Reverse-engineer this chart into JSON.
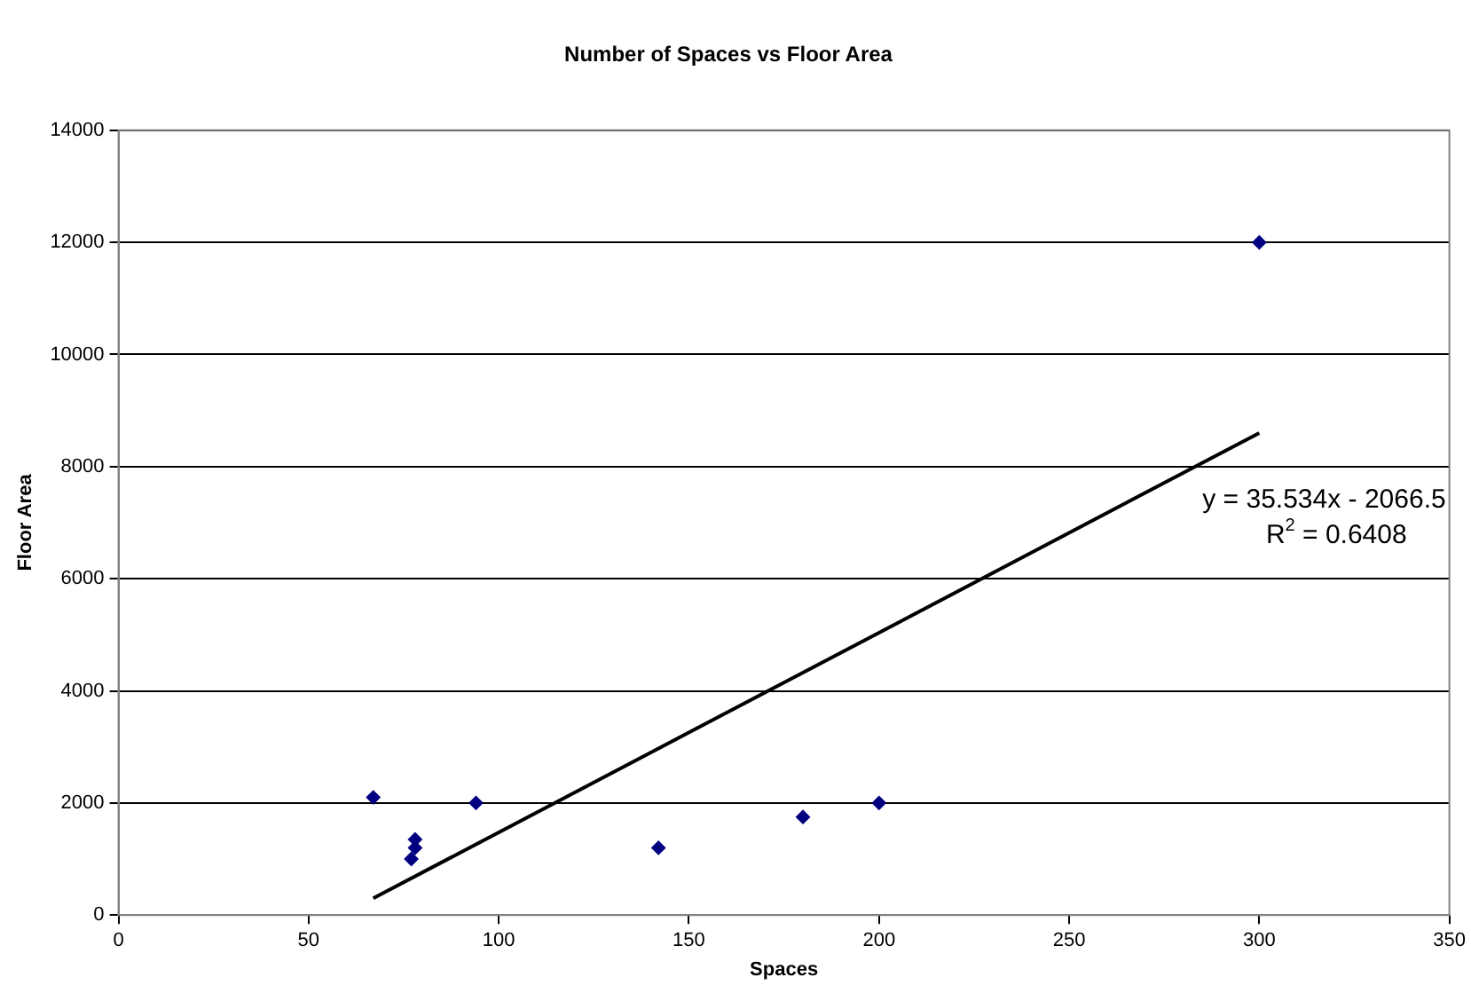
{
  "chart_data": {
    "type": "scatter",
    "title": "Number of Spaces vs Floor Area",
    "xlabel": "Spaces",
    "ylabel": "Floor Area",
    "xlim": [
      0,
      350
    ],
    "xticks": [
      0,
      50,
      100,
      150,
      200,
      250,
      300,
      350
    ],
    "ylim": [
      0,
      14000
    ],
    "yticks": [
      0,
      2000,
      4000,
      6000,
      8000,
      10000,
      12000,
      14000
    ],
    "grid": "y",
    "legend": false,
    "marker": "diamond",
    "series": [
      {
        "color": "#000080",
        "x": [
          67,
          78,
          78,
          77,
          94,
          142,
          180,
          200,
          300
        ],
        "values": [
          2100,
          1350,
          1200,
          1000,
          2000,
          1200,
          1750,
          2000,
          12000
        ]
      },
      {
        "type": "line",
        "color": "#000000",
        "marker": "none",
        "x": [
          67,
          300
        ],
        "values": [
          300,
          8600
        ]
      }
    ],
    "annotations": [
      "y = 35.534x - 2066.5",
      "R$^{2}$ = 0.6408"
    ]
  }
}
